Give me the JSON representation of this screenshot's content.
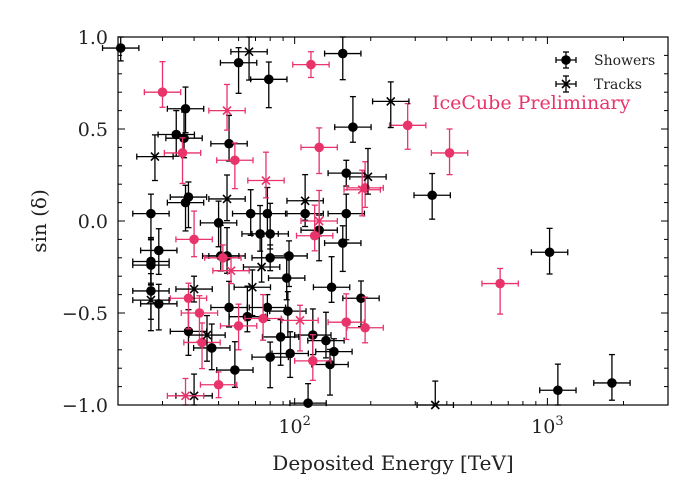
{
  "chart_data": {
    "type": "scatter",
    "title": "",
    "xlabel": "Deposited Energy [TeV]",
    "ylabel": "sin (δ)",
    "xscale": "log",
    "xlim": [
      20,
      3000
    ],
    "ylim": [
      -1.0,
      1.0
    ],
    "x_ticks": [
      {
        "value": 100,
        "label": "10",
        "exp": "2"
      },
      {
        "value": 1000,
        "label": "10",
        "exp": "3"
      }
    ],
    "y_ticks": [
      {
        "value": -1.0,
        "label": "−1.0"
      },
      {
        "value": -0.5,
        "label": "−0.5"
      },
      {
        "value": 0.0,
        "label": "0.0"
      },
      {
        "value": 0.5,
        "label": "0.5"
      },
      {
        "value": 1.0,
        "label": "1.0"
      }
    ],
    "grid": false,
    "legend_position": "top-right",
    "annotation": {
      "text": "IceCube Preliminary",
      "color": "#e8336b"
    },
    "colors": {
      "black": "#000000",
      "pink": "#e8336b"
    },
    "series": [
      {
        "name": "Showers",
        "marker": "circle",
        "points": [
          {
            "x": 20.5,
            "y": 0.94,
            "c": "black"
          },
          {
            "x": 60,
            "y": 0.86,
            "c": "black"
          },
          {
            "x": 79,
            "y": 0.77,
            "c": "black"
          },
          {
            "x": 155,
            "y": 0.91,
            "c": "black"
          },
          {
            "x": 37,
            "y": 0.61,
            "c": "black"
          },
          {
            "x": 34,
            "y": 0.47,
            "c": "black"
          },
          {
            "x": 36.5,
            "y": 0.45,
            "c": "black"
          },
          {
            "x": 55,
            "y": 0.42,
            "c": "black"
          },
          {
            "x": 170,
            "y": 0.51,
            "c": "black"
          },
          {
            "x": 160,
            "y": 0.26,
            "c": "black"
          },
          {
            "x": 38,
            "y": 0.13,
            "c": "black"
          },
          {
            "x": 37,
            "y": 0.1,
            "c": "black"
          },
          {
            "x": 27,
            "y": 0.04,
            "c": "black"
          },
          {
            "x": 50,
            "y": -0.01,
            "c": "black"
          },
          {
            "x": 67,
            "y": 0.04,
            "c": "black"
          },
          {
            "x": 78,
            "y": 0.04,
            "c": "black"
          },
          {
            "x": 73,
            "y": -0.07,
            "c": "black"
          },
          {
            "x": 80,
            "y": -0.07,
            "c": "black"
          },
          {
            "x": 110,
            "y": 0.04,
            "c": "black"
          },
          {
            "x": 125,
            "y": -0.05,
            "c": "black"
          },
          {
            "x": 155,
            "y": -0.12,
            "c": "black"
          },
          {
            "x": 160,
            "y": 0.04,
            "c": "black"
          },
          {
            "x": 29,
            "y": -0.16,
            "c": "black"
          },
          {
            "x": 27,
            "y": -0.22,
            "c": "black"
          },
          {
            "x": 27,
            "y": -0.24,
            "c": "black"
          },
          {
            "x": 54,
            "y": -0.19,
            "c": "black"
          },
          {
            "x": 51,
            "y": -0.19,
            "c": "black"
          },
          {
            "x": 80,
            "y": -0.2,
            "c": "black"
          },
          {
            "x": 95,
            "y": -0.19,
            "c": "black"
          },
          {
            "x": 27,
            "y": -0.38,
            "c": "black"
          },
          {
            "x": 29,
            "y": -0.45,
            "c": "black"
          },
          {
            "x": 38,
            "y": -0.6,
            "c": "black"
          },
          {
            "x": 47,
            "y": -0.69,
            "c": "black"
          },
          {
            "x": 55,
            "y": -0.47,
            "c": "black"
          },
          {
            "x": 58,
            "y": -0.81,
            "c": "black"
          },
          {
            "x": 65,
            "y": -0.52,
            "c": "black"
          },
          {
            "x": 78,
            "y": -0.47,
            "c": "black"
          },
          {
            "x": 80,
            "y": -0.74,
            "c": "black"
          },
          {
            "x": 88,
            "y": -0.63,
            "c": "black"
          },
          {
            "x": 94,
            "y": -0.49,
            "c": "black"
          },
          {
            "x": 96,
            "y": -0.72,
            "c": "black"
          },
          {
            "x": 93,
            "y": -0.31,
            "c": "black"
          },
          {
            "x": 118,
            "y": -0.62,
            "c": "black"
          },
          {
            "x": 133,
            "y": -0.65,
            "c": "black"
          },
          {
            "x": 140,
            "y": -0.36,
            "c": "black"
          },
          {
            "x": 143,
            "y": -0.71,
            "c": "black"
          },
          {
            "x": 138,
            "y": -0.78,
            "c": "black"
          },
          {
            "x": 183,
            "y": -0.42,
            "c": "black"
          },
          {
            "x": 113,
            "y": -0.99,
            "c": "black"
          },
          {
            "x": 350,
            "y": 0.14,
            "c": "black"
          },
          {
            "x": 1020,
            "y": -0.17,
            "c": "black"
          },
          {
            "x": 1100,
            "y": -0.92,
            "c": "black"
          },
          {
            "x": 1800,
            "y": -0.88,
            "c": "black"
          },
          {
            "x": 30,
            "y": 0.7,
            "c": "pink"
          },
          {
            "x": 116,
            "y": 0.85,
            "c": "pink"
          },
          {
            "x": 36,
            "y": 0.37,
            "c": "pink"
          },
          {
            "x": 58,
            "y": 0.33,
            "c": "pink"
          },
          {
            "x": 125,
            "y": 0.4,
            "c": "pink"
          },
          {
            "x": 280,
            "y": 0.52,
            "c": "pink"
          },
          {
            "x": 410,
            "y": 0.37,
            "c": "pink"
          },
          {
            "x": 190,
            "y": 0.18,
            "c": "pink"
          },
          {
            "x": 40,
            "y": -0.1,
            "c": "pink"
          },
          {
            "x": 120,
            "y": -0.08,
            "c": "pink"
          },
          {
            "x": 52,
            "y": -0.2,
            "c": "pink"
          },
          {
            "x": 38,
            "y": -0.42,
            "c": "pink"
          },
          {
            "x": 42,
            "y": -0.5,
            "c": "pink"
          },
          {
            "x": 43,
            "y": -0.66,
            "c": "pink"
          },
          {
            "x": 60,
            "y": -0.57,
            "c": "pink"
          },
          {
            "x": 75,
            "y": -0.53,
            "c": "pink"
          },
          {
            "x": 118,
            "y": -0.76,
            "c": "pink"
          },
          {
            "x": 160,
            "y": -0.55,
            "c": "pink"
          },
          {
            "x": 190,
            "y": -0.58,
            "c": "pink"
          },
          {
            "x": 50,
            "y": -0.89,
            "c": "pink"
          },
          {
            "x": 650,
            "y": -0.34,
            "c": "pink"
          }
        ]
      },
      {
        "name": "Tracks",
        "marker": "x",
        "points": [
          {
            "x": 66,
            "y": 0.92,
            "c": "black"
          },
          {
            "x": 240,
            "y": 0.65,
            "c": "black"
          },
          {
            "x": 28,
            "y": 0.35,
            "c": "black"
          },
          {
            "x": 54,
            "y": 0.12,
            "c": "black"
          },
          {
            "x": 110,
            "y": 0.11,
            "c": "black"
          },
          {
            "x": 195,
            "y": 0.24,
            "c": "black"
          },
          {
            "x": 74,
            "y": -0.25,
            "c": "black"
          },
          {
            "x": 40,
            "y": -0.37,
            "c": "black"
          },
          {
            "x": 27,
            "y": -0.43,
            "c": "black"
          },
          {
            "x": 68,
            "y": -0.36,
            "c": "black"
          },
          {
            "x": 45,
            "y": -0.62,
            "c": "black"
          },
          {
            "x": 40,
            "y": -0.95,
            "c": "black"
          },
          {
            "x": 360,
            "y": -1.0,
            "c": "black"
          },
          {
            "x": 54,
            "y": 0.6,
            "c": "pink"
          },
          {
            "x": 77,
            "y": 0.22,
            "c": "pink"
          },
          {
            "x": 125,
            "y": 0.0,
            "c": "pink"
          },
          {
            "x": 56,
            "y": -0.27,
            "c": "pink"
          },
          {
            "x": 105,
            "y": -0.54,
            "c": "pink"
          },
          {
            "x": 37,
            "y": -0.95,
            "c": "pink"
          },
          {
            "x": 185,
            "y": 0.17,
            "c": "pink"
          }
        ]
      }
    ]
  }
}
